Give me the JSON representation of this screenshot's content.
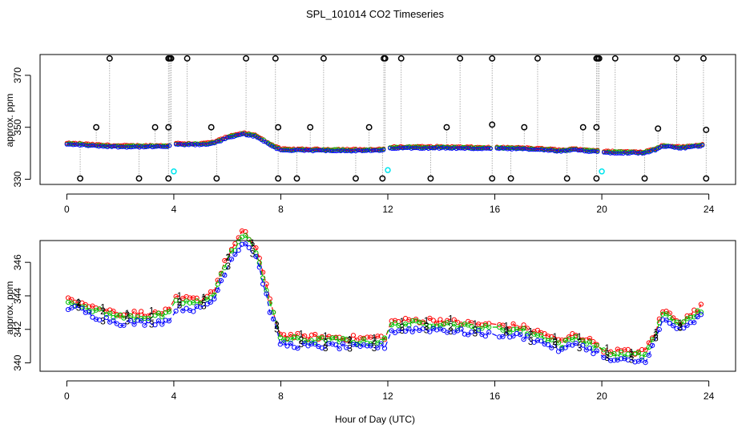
{
  "figure": {
    "title": "SPL_101014  CO2 Timeseries",
    "xlabel": "Hour of Day (UTC)"
  },
  "colors": {
    "s1": "#ff0000",
    "s2": "#00c000",
    "s3": "#0000ff",
    "outlier": "#000000",
    "marker_cyan": "#00e5ee",
    "connector": "#9a9a9a",
    "blue_dash": "#0000cc"
  },
  "chart_data": [
    {
      "type": "scatter",
      "panel": "top",
      "ylabel": "approx. ppm",
      "xlim": [
        -1,
        25
      ],
      "ylim": [
        328,
        378
      ],
      "xticks": [
        0,
        4,
        8,
        12,
        16,
        20,
        24
      ],
      "yticks": [
        330,
        350,
        370
      ],
      "series": [
        {
          "name": "1",
          "values": "dense 1-min data, color red (see points)"
        },
        {
          "name": "2",
          "values": "color green"
        },
        {
          "name": "3",
          "values": "color blue"
        }
      ],
      "baseline": [
        [
          0.0,
          343.5
        ],
        [
          0.5,
          343.4
        ],
        [
          1.0,
          343.0
        ],
        [
          2.0,
          342.6
        ],
        [
          3.0,
          342.6
        ],
        [
          3.8,
          342.7
        ],
        [
          4.1,
          343.5
        ],
        [
          5.0,
          343.4
        ],
        [
          5.5,
          344.0
        ],
        [
          6.0,
          346.0
        ],
        [
          6.6,
          347.5
        ],
        [
          7.1,
          346.5
        ],
        [
          7.6,
          343.3
        ],
        [
          8.0,
          341.3
        ],
        [
          9.0,
          341.2
        ],
        [
          10.0,
          341.2
        ],
        [
          11.0,
          341.1
        ],
        [
          11.9,
          341.2
        ],
        [
          12.1,
          342.1
        ],
        [
          13.0,
          342.2
        ],
        [
          14.0,
          342.2
        ],
        [
          15.0,
          342.0
        ],
        [
          15.9,
          341.9
        ],
        [
          16.1,
          341.9
        ],
        [
          17.0,
          341.8
        ],
        [
          18.0,
          341.3
        ],
        [
          18.5,
          340.9
        ],
        [
          19.0,
          341.4
        ],
        [
          19.5,
          341.0
        ],
        [
          19.9,
          340.8
        ],
        [
          20.1,
          340.4
        ],
        [
          21.0,
          340.3
        ],
        [
          21.6,
          340.3
        ],
        [
          22.0,
          341.5
        ],
        [
          22.3,
          342.8
        ],
        [
          23.0,
          342.1
        ],
        [
          23.7,
          343.0
        ]
      ],
      "outliers_high": [
        1.6,
        3.8,
        3.85,
        3.9,
        4.5,
        6.7,
        7.8,
        9.6,
        11.85,
        11.9,
        12.5,
        14.7,
        15.9,
        17.6,
        19.8,
        19.85,
        19.9,
        20.5,
        22.8,
        23.8
      ],
      "outliers_mid": [
        [
          1.1,
          350
        ],
        [
          3.3,
          350
        ],
        [
          3.8,
          350
        ],
        [
          5.4,
          350
        ],
        [
          7.9,
          350
        ],
        [
          9.1,
          350
        ],
        [
          11.3,
          350
        ],
        [
          14.2,
          350
        ],
        [
          15.9,
          351
        ],
        [
          17.1,
          350
        ],
        [
          19.3,
          350
        ],
        [
          19.8,
          350
        ],
        [
          22.1,
          349.5
        ],
        [
          23.9,
          349
        ]
      ],
      "outliers_low": [
        0.5,
        2.7,
        3.8,
        5.6,
        7.9,
        8.6,
        10.8,
        11.8,
        13.6,
        15.9,
        16.6,
        18.7,
        19.8,
        21.6,
        23.9
      ],
      "cyan_points": [
        [
          4.0,
          333
        ],
        [
          12.0,
          333.5
        ],
        [
          20.0,
          333
        ]
      ]
    },
    {
      "type": "scatter",
      "panel": "bottom",
      "ylabel": "approx. ppm",
      "xlim": [
        -1,
        25
      ],
      "ylim": [
        339.5,
        347.3
      ],
      "xticks": [
        0,
        4,
        8,
        12,
        16,
        20,
        24
      ],
      "yticks": [
        340,
        342,
        344,
        346
      ],
      "series": [
        {
          "name": "1",
          "symbol": "1",
          "color_key": "s1"
        },
        {
          "name": "2",
          "symbol": "2",
          "color_key": "s2"
        },
        {
          "name": "3",
          "symbol": "3",
          "color_key": "s3"
        }
      ]
    }
  ]
}
